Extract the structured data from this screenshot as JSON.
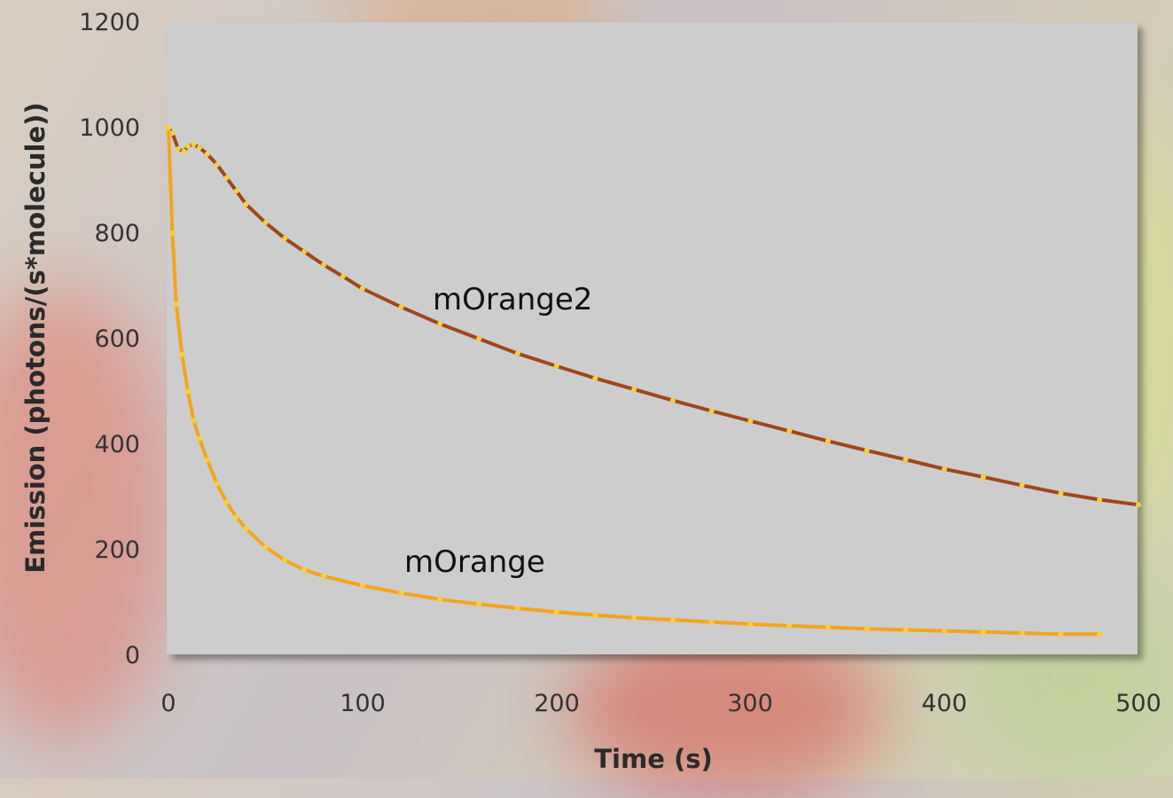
{
  "chart_data": {
    "type": "line",
    "title": "",
    "xlabel": "Time (s)",
    "ylabel": "Emission (photons/(s*molecule))",
    "xlim": [
      0,
      500
    ],
    "ylim": [
      0,
      1200
    ],
    "x_ticks": [
      "0",
      "100",
      "200",
      "300",
      "400",
      "500"
    ],
    "y_ticks": [
      "0",
      "200",
      "400",
      "600",
      "800",
      "1000",
      "1200"
    ],
    "grid": false,
    "legend": "none; series labeled directly on plot",
    "colors": {
      "plot_background": "#cdcdcd",
      "mOrange2_line": "#a0461c",
      "mOrange_line": "#f2a51c",
      "markers": "#f6d03a"
    },
    "series": [
      {
        "name": "mOrange2",
        "x": [
          0,
          2,
          5,
          8,
          10,
          13,
          16,
          20,
          25,
          30,
          35,
          40,
          50,
          60,
          70,
          80,
          90,
          100,
          120,
          140,
          160,
          180,
          200,
          220,
          240,
          260,
          280,
          300,
          320,
          340,
          360,
          380,
          400,
          420,
          440,
          460,
          480,
          500
        ],
        "values": [
          1000,
          990,
          960,
          955,
          965,
          968,
          962,
          950,
          930,
          905,
          880,
          855,
          820,
          790,
          765,
          740,
          718,
          695,
          660,
          628,
          600,
          572,
          548,
          525,
          504,
          483,
          463,
          444,
          425,
          406,
          388,
          371,
          353,
          338,
          322,
          307,
          295,
          285
        ]
      },
      {
        "name": "mOrange",
        "x": [
          0,
          2,
          4,
          7,
          10,
          13,
          16,
          20,
          25,
          30,
          35,
          40,
          50,
          60,
          70,
          80,
          100,
          120,
          140,
          160,
          180,
          200,
          220,
          240,
          260,
          280,
          300,
          320,
          340,
          360,
          380,
          400,
          420,
          440,
          460,
          480
        ],
        "values": [
          1000,
          800,
          665,
          570,
          500,
          445,
          410,
          370,
          325,
          290,
          262,
          240,
          205,
          180,
          162,
          150,
          132,
          118,
          106,
          97,
          89,
          82,
          76,
          71,
          67,
          63,
          59,
          56,
          53,
          50,
          48,
          46,
          44,
          42,
          40,
          40
        ]
      }
    ],
    "annotations": [
      "mOrange2",
      "mOrange"
    ]
  }
}
